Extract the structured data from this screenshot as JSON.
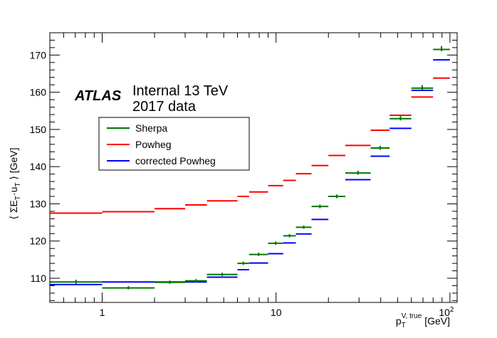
{
  "chart_data": {
    "type": "scatter",
    "title": "",
    "xlabel": {
      "main": "p",
      "sub": "T",
      "sup": "V, true",
      "unit": " [GeV]"
    },
    "ylabel": {
      "main": "⟨ ΣE",
      "sub1": "T",
      "mid": "·u",
      "sub2": "T",
      "tail": " ⟩ [GeV]"
    },
    "xscale": "log",
    "xlim": [
      0.5,
      110
    ],
    "ylim": [
      103.5,
      176
    ],
    "xticks": [
      {
        "value": 1,
        "label": "1"
      },
      {
        "value": 10,
        "label": "10"
      }
    ],
    "x_last_tick": {
      "value": 100,
      "base": "10",
      "exp": "2"
    },
    "yticks": [
      110,
      120,
      130,
      140,
      150,
      160,
      170
    ],
    "grid": false,
    "annotations": {
      "atlas": "ATLAS",
      "internal_line1": "Internal 13 TeV",
      "internal_line2": "2017 data"
    },
    "legend": {
      "position": "upper-left",
      "entries": [
        "Sherpa",
        "Powheg",
        "corrected Powheg"
      ]
    },
    "series": [
      {
        "name": "Sherpa",
        "color": "#007700",
        "points": [
          {
            "x_low": 0.5,
            "x_high": 1,
            "y": 109.0,
            "yerr": 0.6
          },
          {
            "x_low": 1,
            "x_high": 2,
            "y": 107.4,
            "yerr": 0.4
          },
          {
            "x_low": 2,
            "x_high": 3,
            "y": 108.9,
            "yerr": 0.4
          },
          {
            "x_low": 3,
            "x_high": 4,
            "y": 109.3,
            "yerr": 0.4
          },
          {
            "x_low": 4,
            "x_high": 6,
            "y": 111.0,
            "yerr": 0.4
          },
          {
            "x_low": 6,
            "x_high": 7,
            "y": 114.0,
            "yerr": 0.4
          },
          {
            "x_low": 7,
            "x_high": 9,
            "y": 116.4,
            "yerr": 0.4
          },
          {
            "x_low": 9,
            "x_high": 11,
            "y": 119.4,
            "yerr": 0.4
          },
          {
            "x_low": 11,
            "x_high": 13,
            "y": 121.4,
            "yerr": 0.4
          },
          {
            "x_low": 13,
            "x_high": 16,
            "y": 123.7,
            "yerr": 0.4
          },
          {
            "x_low": 16,
            "x_high": 20,
            "y": 129.3,
            "yerr": 0.5
          },
          {
            "x_low": 20,
            "x_high": 25,
            "y": 132.0,
            "yerr": 0.5
          },
          {
            "x_low": 25,
            "x_high": 35,
            "y": 138.3,
            "yerr": 0.6
          },
          {
            "x_low": 35,
            "x_high": 45,
            "y": 145.0,
            "yerr": 0.6
          },
          {
            "x_low": 45,
            "x_high": 60,
            "y": 152.9,
            "yerr": 0.7
          },
          {
            "x_low": 60,
            "x_high": 80,
            "y": 161.1,
            "yerr": 0.8
          },
          {
            "x_low": 80,
            "x_high": 100,
            "y": 171.5,
            "yerr": 0.9
          }
        ]
      },
      {
        "name": "Powheg",
        "color": "#ff0000",
        "points": [
          {
            "x_low": 0.5,
            "x_high": 1,
            "y": 127.5
          },
          {
            "x_low": 1,
            "x_high": 2,
            "y": 127.9
          },
          {
            "x_low": 2,
            "x_high": 3,
            "y": 128.7
          },
          {
            "x_low": 3,
            "x_high": 4,
            "y": 129.7
          },
          {
            "x_low": 4,
            "x_high": 6,
            "y": 130.8
          },
          {
            "x_low": 6,
            "x_high": 7,
            "y": 132.0
          },
          {
            "x_low": 7,
            "x_high": 9,
            "y": 133.2
          },
          {
            "x_low": 9,
            "x_high": 11,
            "y": 134.9
          },
          {
            "x_low": 11,
            "x_high": 13,
            "y": 136.3
          },
          {
            "x_low": 13,
            "x_high": 16,
            "y": 138.1
          },
          {
            "x_low": 16,
            "x_high": 20,
            "y": 140.3
          },
          {
            "x_low": 20,
            "x_high": 25,
            "y": 143.0
          },
          {
            "x_low": 25,
            "x_high": 35,
            "y": 145.7
          },
          {
            "x_low": 35,
            "x_high": 45,
            "y": 149.8
          },
          {
            "x_low": 45,
            "x_high": 60,
            "y": 153.8
          },
          {
            "x_low": 60,
            "x_high": 80,
            "y": 158.7
          },
          {
            "x_low": 80,
            "x_high": 100,
            "y": 163.8
          }
        ]
      },
      {
        "name": "corrected Powheg",
        "color": "#0000ff",
        "points": [
          {
            "x_low": 0.5,
            "x_high": 1,
            "y": 108.3
          },
          {
            "x_low": 1,
            "x_high": 2,
            "y": 109.0
          },
          {
            "x_low": 2,
            "x_high": 3,
            "y": 109.0
          },
          {
            "x_low": 3,
            "x_high": 4,
            "y": 109.0
          },
          {
            "x_low": 4,
            "x_high": 6,
            "y": 110.3
          },
          {
            "x_low": 6,
            "x_high": 7,
            "y": 112.3
          },
          {
            "x_low": 7,
            "x_high": 9,
            "y": 114.1
          },
          {
            "x_low": 9,
            "x_high": 11,
            "y": 116.6
          },
          {
            "x_low": 11,
            "x_high": 13,
            "y": 119.5
          },
          {
            "x_low": 13,
            "x_high": 16,
            "y": 121.9
          },
          {
            "x_low": 16,
            "x_high": 20,
            "y": 125.8
          },
          {
            "x_low": 20,
            "x_high": 25,
            "y": 132.0
          },
          {
            "x_low": 25,
            "x_high": 35,
            "y": 136.5
          },
          {
            "x_low": 35,
            "x_high": 45,
            "y": 142.8
          },
          {
            "x_low": 45,
            "x_high": 60,
            "y": 150.3
          },
          {
            "x_low": 60,
            "x_high": 80,
            "y": 160.5
          },
          {
            "x_low": 80,
            "x_high": 100,
            "y": 168.7
          }
        ]
      }
    ]
  }
}
